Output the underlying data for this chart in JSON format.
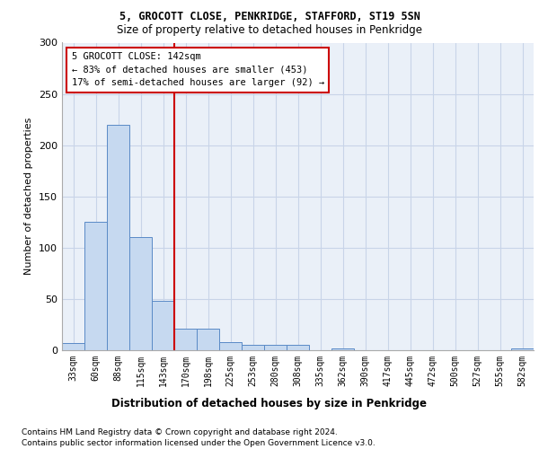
{
  "title1": "5, GROCOTT CLOSE, PENKRIDGE, STAFFORD, ST19 5SN",
  "title2": "Size of property relative to detached houses in Penkridge",
  "xlabel": "Distribution of detached houses by size in Penkridge",
  "ylabel": "Number of detached properties",
  "bins": [
    "33sqm",
    "60sqm",
    "88sqm",
    "115sqm",
    "143sqm",
    "170sqm",
    "198sqm",
    "225sqm",
    "253sqm",
    "280sqm",
    "308sqm",
    "335sqm",
    "362sqm",
    "390sqm",
    "417sqm",
    "445sqm",
    "472sqm",
    "500sqm",
    "527sqm",
    "555sqm",
    "582sqm"
  ],
  "values": [
    7,
    125,
    220,
    110,
    48,
    21,
    21,
    8,
    5,
    5,
    5,
    0,
    2,
    0,
    0,
    0,
    0,
    0,
    0,
    0,
    2
  ],
  "bar_color": "#c6d9f0",
  "bar_edge_color": "#5a8ac6",
  "vline_pos": 4.5,
  "vline_color": "#cc0000",
  "annotation_text": "5 GROCOTT CLOSE: 142sqm\n← 83% of detached houses are smaller (453)\n17% of semi-detached houses are larger (92) →",
  "annotation_box_color": "#cc0000",
  "footnote1": "Contains HM Land Registry data © Crown copyright and database right 2024.",
  "footnote2": "Contains public sector information licensed under the Open Government Licence v3.0.",
  "ylim": [
    0,
    300
  ],
  "yticks": [
    0,
    50,
    100,
    150,
    200,
    250,
    300
  ],
  "background_color": "#eaf0f8",
  "grid_color": "#c8d4e8"
}
